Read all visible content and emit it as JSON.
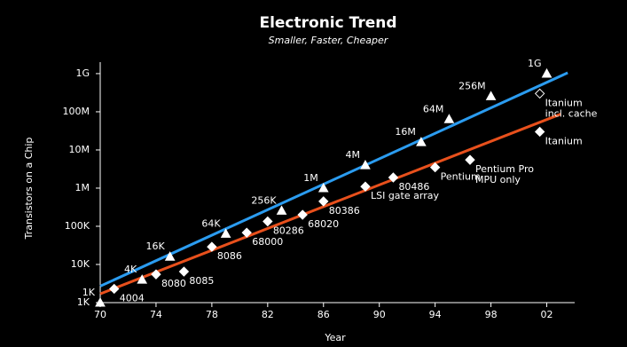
{
  "chart_data": {
    "type": "scatter",
    "title": "Electronic Trend",
    "subtitle": "Smaller, Faster, Cheaper",
    "x_label": "Year",
    "y_label": "Transistors on a Chip",
    "log_y": true,
    "xlim": [
      70,
      104
    ],
    "xticks": [
      70,
      74,
      78,
      82,
      86,
      90,
      94,
      98,
      {
        "value": 102,
        "label": "02"
      }
    ],
    "ylim": [
      1000,
      2000000000
    ],
    "yticks": [
      {
        "value": 1000,
        "label": "1K"
      },
      {
        "value": 10000,
        "label": "10K"
      },
      {
        "value": 100000,
        "label": "100K"
      },
      {
        "value": 1000000,
        "label": "1M"
      },
      {
        "value": 10000000,
        "label": "10M"
      },
      {
        "value": 100000000,
        "label": "100M"
      },
      {
        "value": 1000000000,
        "label": "1G"
      }
    ],
    "series": [
      {
        "marker": "triangle",
        "color": "#ffffff",
        "x": [
          70,
          73,
          75,
          79,
          83,
          86,
          89,
          93,
          95,
          98,
          102
        ],
        "values": [
          1000,
          4000,
          16000,
          64000,
          256000,
          1000000,
          4000000,
          16000000,
          64000000,
          256000000,
          1000000000
        ],
        "value_labels": [
          "1K",
          "4K",
          "16K",
          "64K",
          "256K",
          "1M",
          "4M",
          "16M",
          "64M",
          "256M",
          "1G"
        ]
      },
      {
        "marker": "diamond",
        "color": "#ffffff",
        "x": [
          71,
          74,
          76,
          78,
          80.5,
          82,
          84.5,
          86,
          89,
          91,
          94,
          96.5,
          101.5,
          101.5
        ],
        "values": [
          2300,
          5500,
          6500,
          29000,
          68000,
          134000,
          200000,
          450000,
          1100000,
          1900000,
          3500000,
          5500000,
          30000000,
          300000000
        ],
        "hollow": [
          false,
          false,
          false,
          false,
          false,
          false,
          false,
          false,
          false,
          false,
          false,
          false,
          false,
          true
        ],
        "labels": [
          [
            "4004"
          ],
          [
            "8080"
          ],
          [
            "8085"
          ],
          [
            "8086"
          ],
          [
            "68000"
          ],
          [
            "80286"
          ],
          [
            "68020"
          ],
          [
            "80386"
          ],
          [
            "LSI gate array"
          ],
          [
            "80486"
          ],
          [
            "Pentium"
          ],
          [
            "Pentium Pro",
            "MPU only"
          ],
          [
            "Itanium"
          ],
          [
            "Itanium",
            "incl. cache"
          ]
        ]
      }
    ],
    "trend_lines": [
      {
        "color": "#2b9cf0",
        "x": [
          70,
          103.5
        ],
        "values": [
          2700,
          1050000000
        ]
      },
      {
        "color": "#e8501c",
        "x": [
          70,
          103
        ],
        "values": [
          1700,
          87000000
        ]
      }
    ]
  }
}
